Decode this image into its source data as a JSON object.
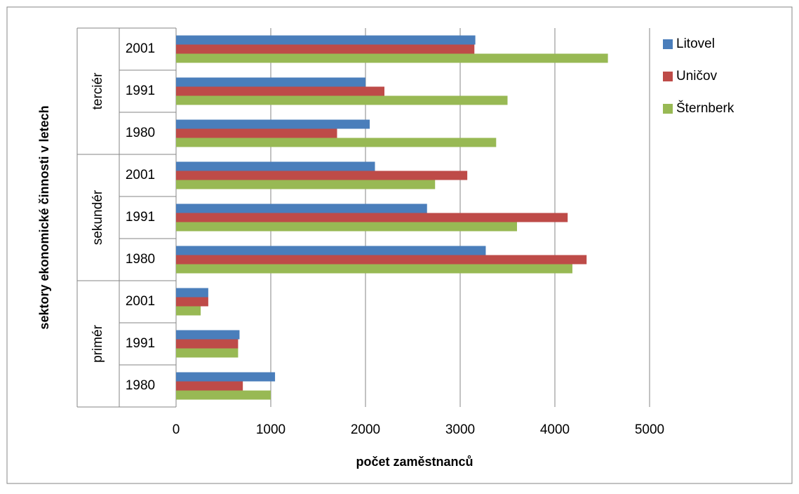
{
  "chart_data": {
    "type": "bar",
    "orientation": "horizontal",
    "x_label": "počet zaměstnanců",
    "y_label": "sektory ekonomické činnosti v letech",
    "categories": [
      "2001",
      "1991",
      "1980",
      "2001",
      "1991",
      "1980",
      "2001",
      "1991",
      "1980"
    ],
    "groups": [
      {
        "name": "terciér",
        "size": 3
      },
      {
        "name": "sekundér",
        "size": 3
      },
      {
        "name": "primér",
        "size": 3
      }
    ],
    "series": [
      {
        "name": "Litovel",
        "color": "#4a7ebb",
        "values": [
          3160,
          2000,
          2045,
          2100,
          2650,
          3270,
          340,
          670,
          1045
        ]
      },
      {
        "name": "Uničov",
        "color": "#be4b48",
        "values": [
          3150,
          2200,
          1700,
          3075,
          4135,
          4335,
          340,
          655,
          705
        ]
      },
      {
        "name": "Šternberk",
        "color": "#98b954",
        "values": [
          4560,
          3500,
          3380,
          2735,
          3600,
          4185,
          260,
          655,
          1000
        ]
      }
    ],
    "xlim": [
      0,
      5000
    ],
    "xticks": [
      0,
      1000,
      2000,
      3000,
      4000,
      5000
    ],
    "grid": true,
    "legend": "right"
  }
}
